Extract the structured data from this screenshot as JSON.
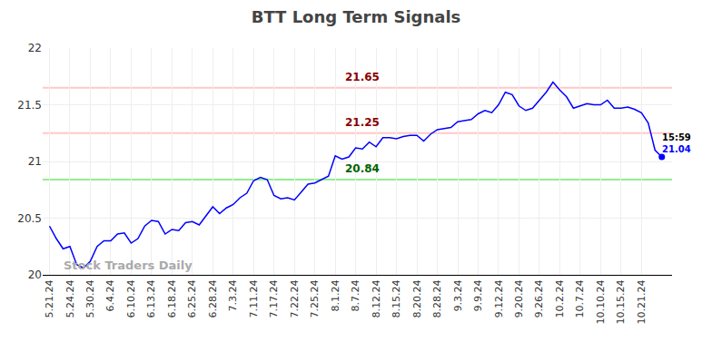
{
  "chart_data": {
    "type": "line",
    "title": "BTT Long Term Signals",
    "categories": [
      "5.21.24",
      null,
      null,
      "5.24.24",
      null,
      null,
      "5.30.24",
      null,
      null,
      "6.4.24",
      null,
      null,
      "6.10.24",
      null,
      null,
      "6.13.24",
      null,
      null,
      "6.18.24",
      null,
      null,
      "6.25.24",
      null,
      null,
      "6.28.24",
      null,
      null,
      "7.3.24",
      null,
      null,
      "7.11.24",
      null,
      null,
      "7.17.24",
      null,
      null,
      "7.22.24",
      null,
      null,
      "7.25.24",
      null,
      null,
      "8.1.24",
      null,
      null,
      "8.7.24",
      null,
      null,
      "8.12.24",
      null,
      null,
      "8.15.24",
      null,
      null,
      "8.20.24",
      null,
      null,
      "8.28.24",
      null,
      null,
      "9.3.24",
      null,
      null,
      "9.9.24",
      null,
      null,
      "9.12.24",
      null,
      null,
      "9.20.24",
      null,
      null,
      "9.26.24",
      null,
      null,
      "10.2.24",
      null,
      null,
      "10.7.24",
      null,
      null,
      "10.10.24",
      null,
      null,
      "10.15.24",
      null,
      null,
      "10.21.24",
      null,
      null,
      null
    ],
    "values": [
      20.43,
      20.32,
      20.23,
      20.25,
      20.09,
      20.06,
      20.12,
      20.25,
      20.3,
      20.3,
      20.36,
      20.37,
      20.28,
      20.32,
      20.43,
      20.48,
      20.47,
      20.36,
      20.4,
      20.39,
      20.46,
      20.47,
      20.44,
      20.52,
      20.6,
      20.54,
      20.59,
      20.62,
      20.68,
      20.72,
      20.83,
      20.86,
      20.84,
      20.7,
      20.67,
      20.68,
      20.66,
      20.73,
      20.8,
      20.81,
      20.84,
      20.87,
      21.05,
      21.02,
      21.04,
      21.12,
      21.11,
      21.17,
      21.13,
      21.21,
      21.21,
      21.2,
      21.22,
      21.23,
      21.23,
      21.18,
      21.24,
      21.28,
      21.29,
      21.3,
      21.35,
      21.36,
      21.37,
      21.42,
      21.45,
      21.43,
      21.5,
      21.61,
      21.59,
      21.49,
      21.45,
      21.47,
      21.54,
      21.61,
      21.7,
      21.63,
      21.57,
      21.47,
      21.49,
      21.51,
      21.5,
      21.5,
      21.54,
      21.47,
      21.47,
      21.48,
      21.46,
      21.43,
      21.34,
      21.1,
      21.04
    ],
    "color": "#0000ff",
    "ylim": [
      20,
      22
    ],
    "yticks": [
      20,
      20.5,
      21,
      21.5,
      22
    ],
    "grid": true,
    "levels": [
      {
        "value": 21.65,
        "color": "#ffc8c8",
        "label_color": "#8b0000"
      },
      {
        "value": 21.25,
        "color": "#ffc8c8",
        "label_color": "#8b0000"
      },
      {
        "value": 20.84,
        "color": "#90ee90",
        "label_color": "#006400"
      }
    ],
    "time_label": "15:59",
    "watermark": "Stock Traders Daily"
  }
}
